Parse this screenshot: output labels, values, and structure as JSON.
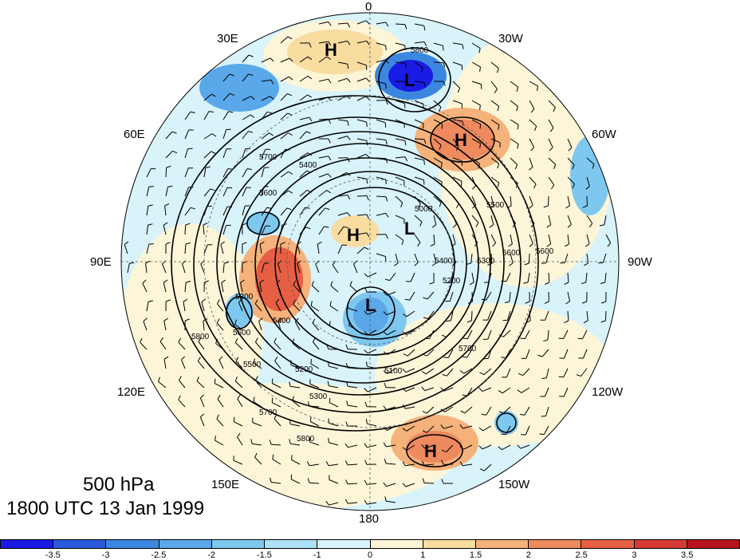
{
  "caption": {
    "level": "500 hPa",
    "time": "1800 UTC 13 Jan 1999"
  },
  "longitude_labels": [
    "0",
    "30W",
    "60W",
    "90W",
    "120W",
    "150W",
    "180",
    "150E",
    "120E",
    "90E",
    "60E",
    "30E"
  ],
  "pressure_systems": [
    "H",
    "L",
    "H",
    "H",
    "L",
    "L",
    "H"
  ],
  "contour_labels": [
    "5800",
    "5700",
    "5600",
    "5400",
    "5300",
    "5200",
    "5100",
    "5000",
    "5800",
    "5700",
    "5600",
    "5500",
    "5400",
    "5300",
    "5200",
    "5800",
    "5700",
    "5600",
    "5300",
    "5400",
    "5500",
    "5600"
  ],
  "colorbar": {
    "ticks": [
      "-3.5",
      "-3",
      "-2.5",
      "-2",
      "-1.5",
      "-1",
      "0",
      "1",
      "1.5",
      "2",
      "2.5",
      "3",
      "3.5"
    ],
    "colors": [
      "#1a1ae6",
      "#2a5ad9",
      "#3b87e0",
      "#5aa8ea",
      "#7ec8f0",
      "#aee2f7",
      "#d8f3fa",
      "#fdf5d8",
      "#f9dca0",
      "#f5b27a",
      "#ee8a5e",
      "#e65f44",
      "#d63a34",
      "#b8141f"
    ]
  },
  "colors": {
    "background": "#ffffff",
    "contour": "#000000"
  }
}
